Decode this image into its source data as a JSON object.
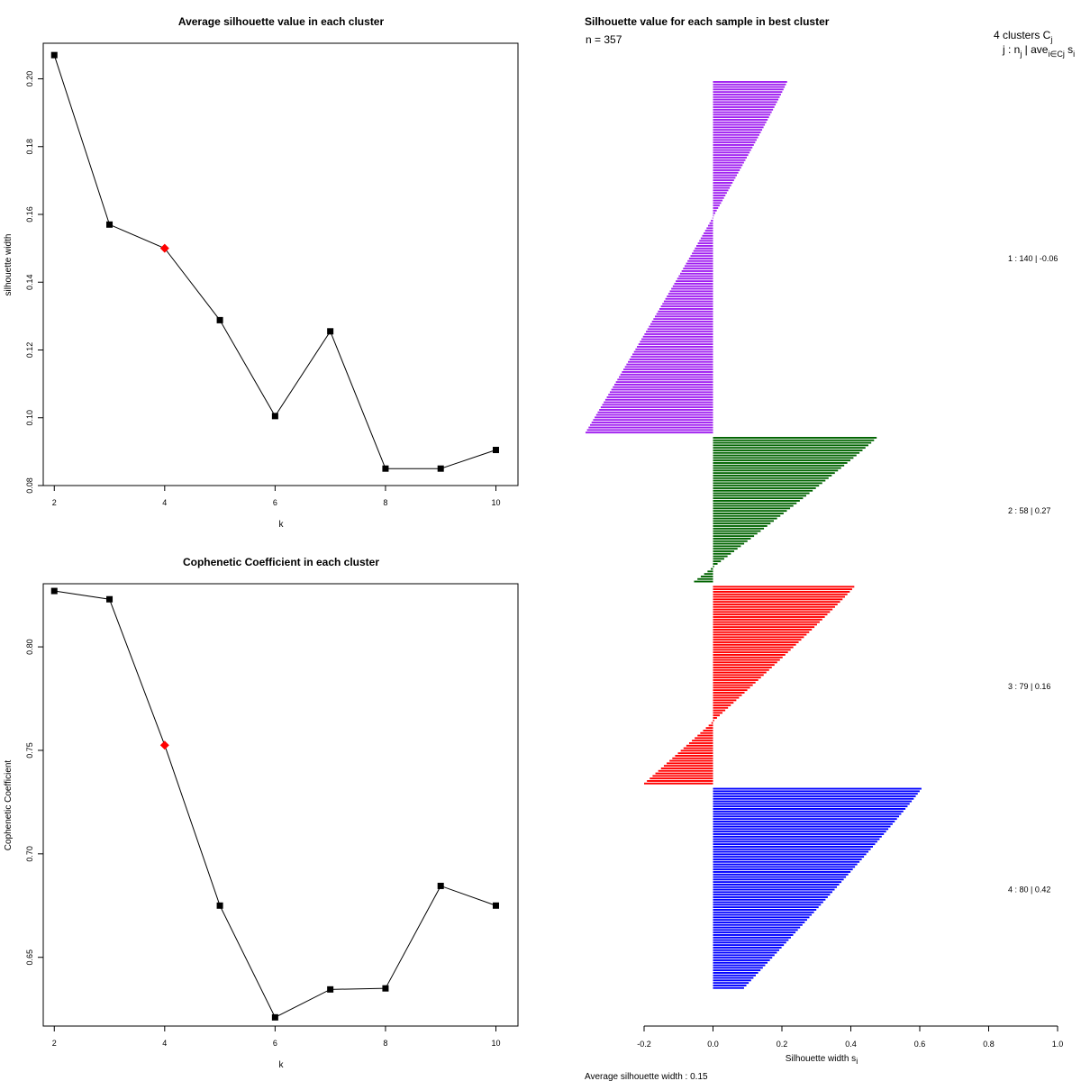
{
  "colors": {
    "point": "#000000",
    "highlight": "#ff0000",
    "cluster1": "#a020f0",
    "cluster2": "#006400",
    "cluster3": "#ff0000",
    "cluster4": "#0000ff"
  },
  "chart_data": [
    {
      "type": "line",
      "title": "Average silhouette value in each cluster",
      "xlabel": "k",
      "ylabel": "silhouette width",
      "x": [
        2,
        3,
        4,
        5,
        6,
        7,
        8,
        9,
        10
      ],
      "values": [
        0.207,
        0.157,
        0.15,
        0.1288,
        0.1005,
        0.1255,
        0.085,
        0.085,
        0.0905
      ],
      "highlight_x": 4,
      "xlim": [
        1.8,
        10.4
      ],
      "ylim": [
        0.08,
        0.2105
      ],
      "xticks": [
        "2",
        "4",
        "6",
        "8",
        "10"
      ],
      "yticks": [
        "0.08",
        "0.10",
        "0.12",
        "0.14",
        "0.16",
        "0.18",
        "0.20"
      ]
    },
    {
      "type": "line",
      "title": "Cophenetic Coefficient in each cluster",
      "xlabel": "k",
      "ylabel": "Cophenetic Coefficient",
      "x": [
        2,
        3,
        4,
        5,
        6,
        7,
        8,
        9,
        10
      ],
      "values": [
        0.827,
        0.823,
        0.7525,
        0.675,
        0.621,
        0.6345,
        0.635,
        0.6845,
        0.675
      ],
      "highlight_x": 4,
      "xlim": [
        1.8,
        10.4
      ],
      "ylim": [
        0.6168,
        0.8305
      ],
      "xticks": [
        "2",
        "4",
        "6",
        "8",
        "10"
      ],
      "yticks": [
        "0.65",
        "0.70",
        "0.75",
        "0.80"
      ]
    },
    {
      "type": "bar",
      "orientation": "horizontal",
      "title": "Silhouette value for each sample in best cluster",
      "n_label": "n = 357",
      "header_line1": "4  clusters  C",
      "header_sub1": "j",
      "header_line2": "j :  n",
      "header_sub2": "j",
      "header_line2b": " | ave",
      "header_sub3": "i∈Cj",
      "header_line2c": "  s",
      "header_sub4": "i",
      "xlabel": "Silhouette width s",
      "xlabel_sub": "i",
      "xlim": [
        -0.2,
        1.0
      ],
      "xticks": [
        "-0.2",
        "0.0",
        "0.2",
        "0.4",
        "0.6",
        "0.8",
        "1.0"
      ],
      "footer": "Average silhouette width :  0.15",
      "clusters": [
        {
          "id": 1,
          "n": 140,
          "avg": -0.06,
          "summary": "1 :  140  |  -0.06",
          "max": 0.215,
          "min": -0.37,
          "pos_count": 44
        },
        {
          "id": 2,
          "n": 58,
          "avg": 0.27,
          "summary": "2 :  58  |  0.27",
          "max": 0.475,
          "min": -0.055,
          "pos_count": 57
        },
        {
          "id": 3,
          "n": 79,
          "avg": 0.16,
          "summary": "3 :  79  |  0.16",
          "max": 0.41,
          "min": -0.2,
          "pos_count": 63
        },
        {
          "id": 4,
          "n": 80,
          "avg": 0.42,
          "summary": "4 :  80  |  0.42",
          "max": 0.605,
          "min": 0.09,
          "pos_count": 80
        }
      ]
    }
  ]
}
